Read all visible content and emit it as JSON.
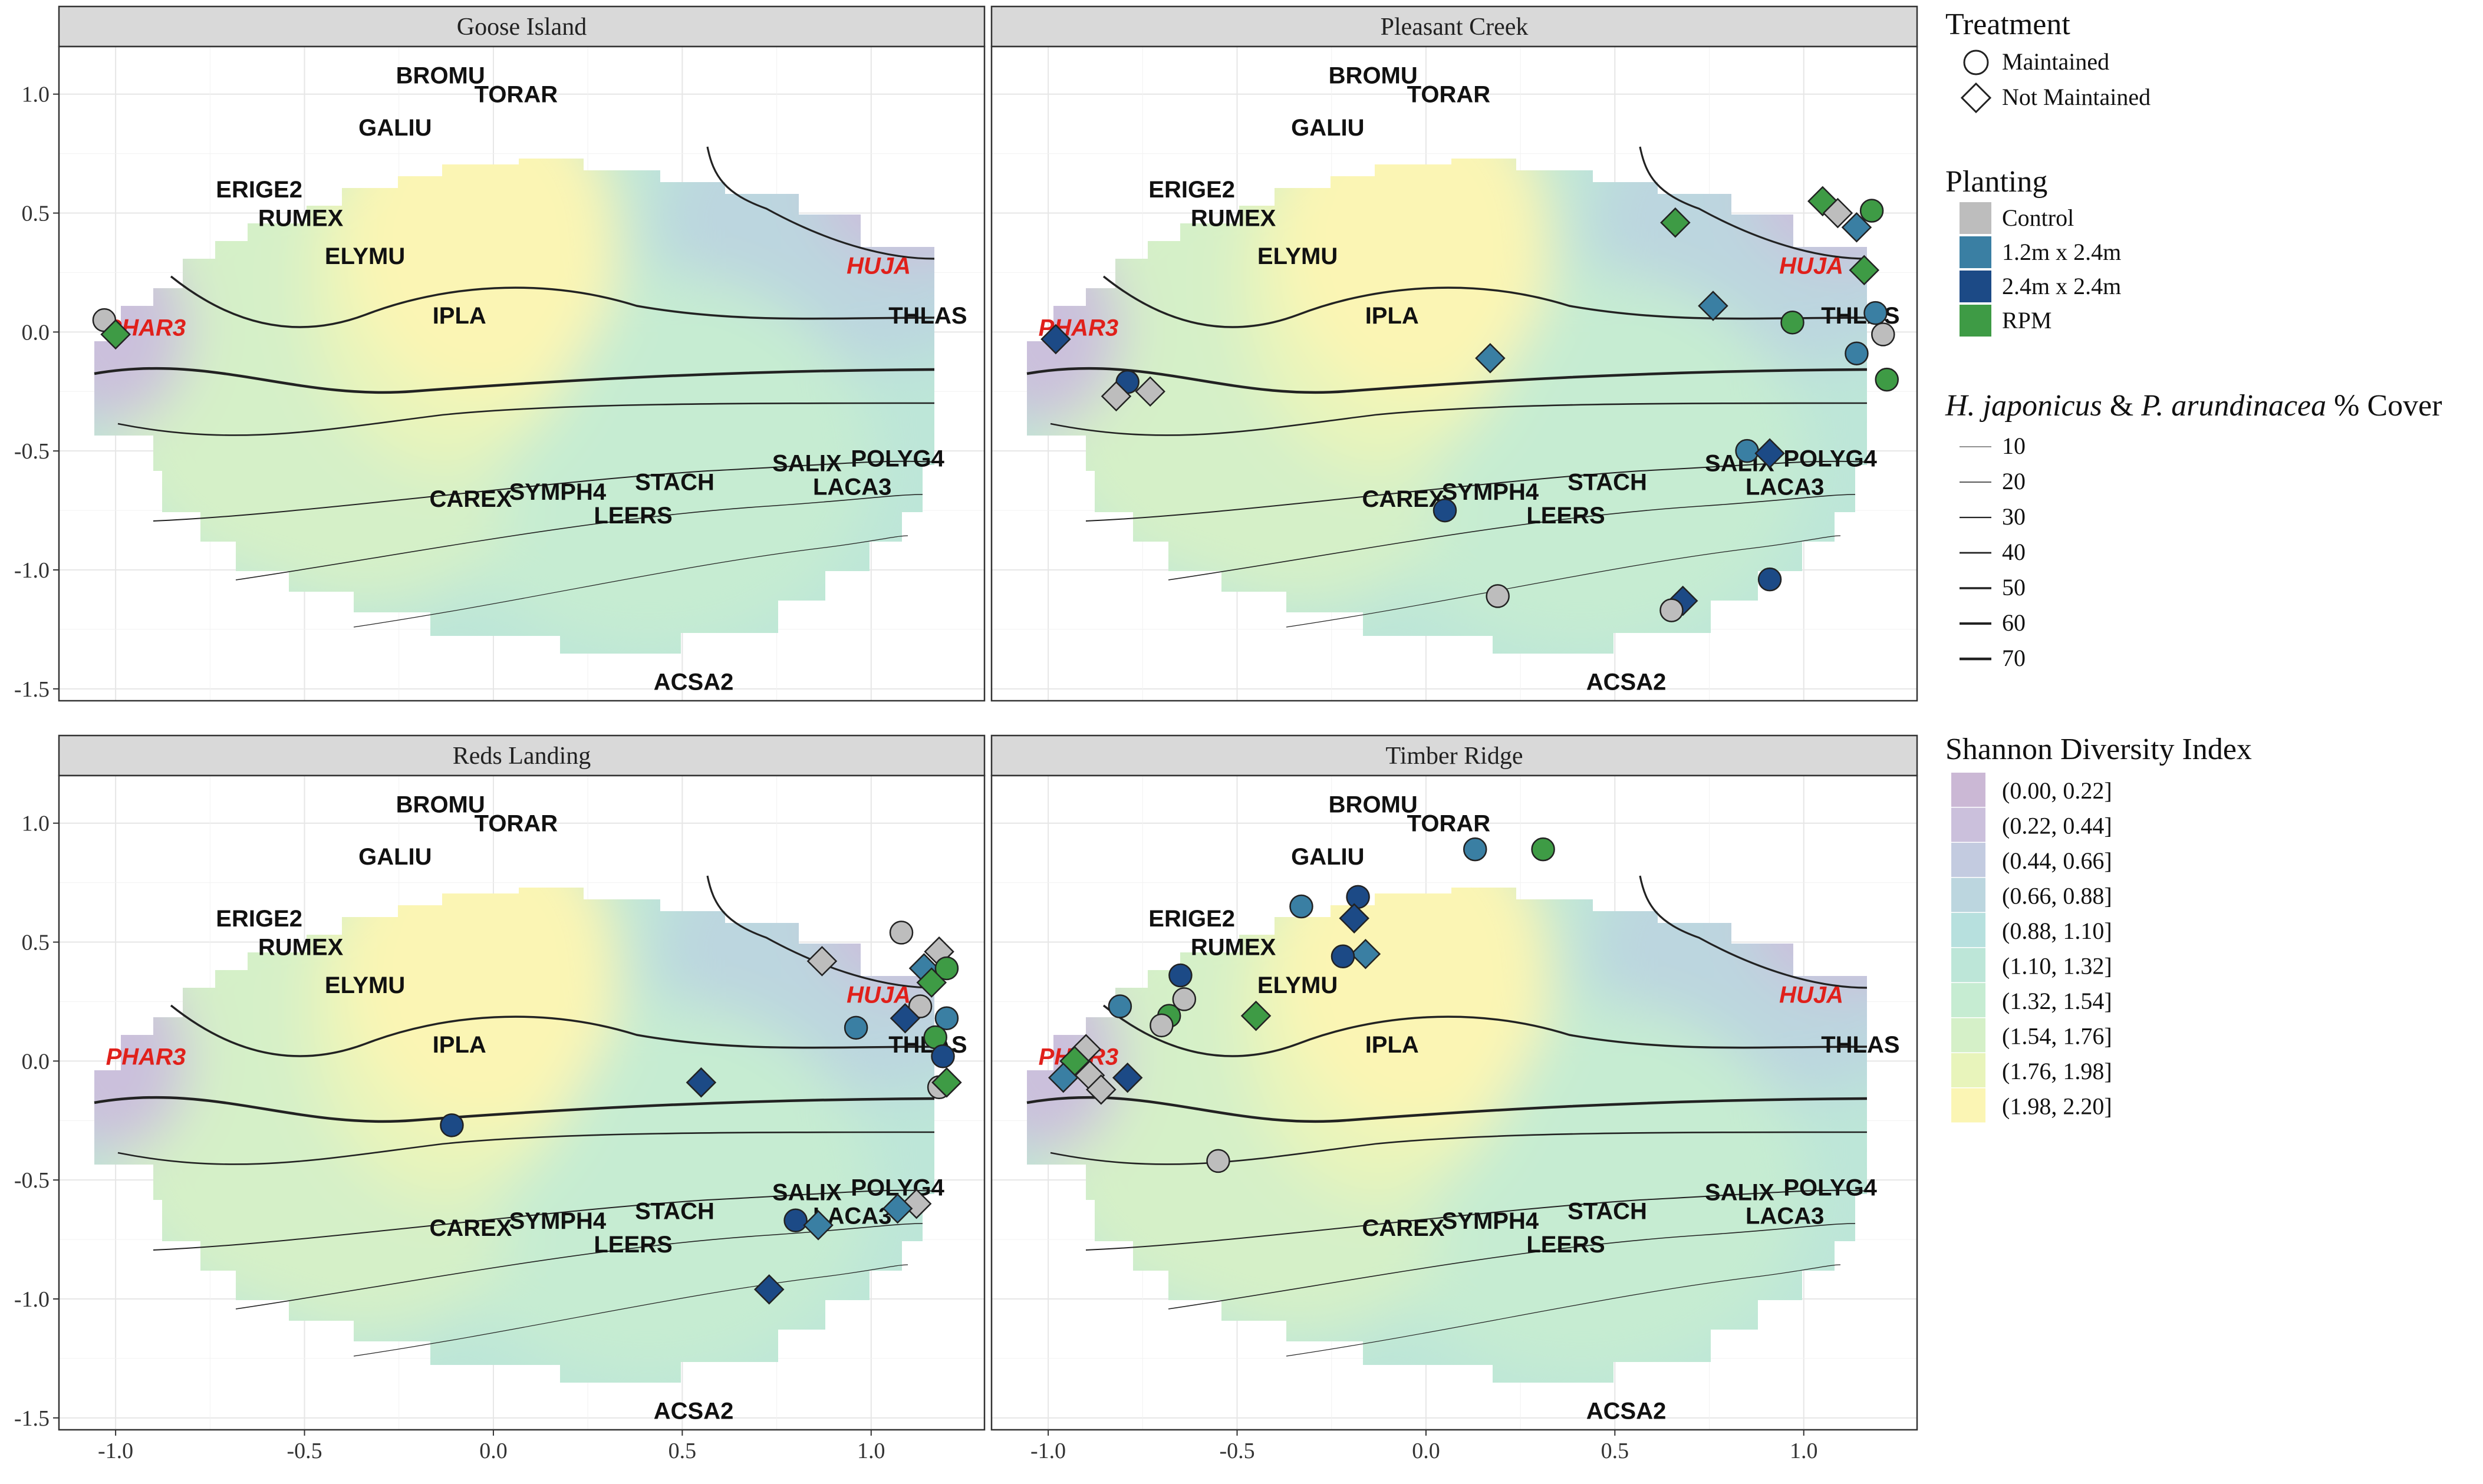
{
  "chart_data": {
    "type": "scatter",
    "xlim": [
      -1.15,
      1.3
    ],
    "ylim": [
      -1.55,
      1.2
    ],
    "x_ticks": [
      -1.0,
      -0.5,
      0.0,
      0.5,
      1.0
    ],
    "x_tick_labels": [
      "-1.0",
      "-0.5",
      "0.0",
      "0.5",
      "1.0"
    ],
    "y_ticks": [
      1.0,
      0.5,
      0.0,
      -0.5,
      -1.0,
      -1.5
    ],
    "y_tick_labels": [
      "1.0",
      "0.5",
      "0.0",
      "-0.5",
      "-1.0",
      "-1.5"
    ],
    "grid": true,
    "legend_position": "right",
    "panels": [
      "Goose Island",
      "Pleasant Creek",
      "Reds Landing",
      "Timber Ridge"
    ],
    "species": [
      {
        "label": "BROMU",
        "x": -0.14,
        "y": 1.08
      },
      {
        "label": "TORAR",
        "x": 0.06,
        "y": 1.0
      },
      {
        "label": "GALIU",
        "x": -0.26,
        "y": 0.86
      },
      {
        "label": "ERIGE2",
        "x": -0.62,
        "y": 0.6
      },
      {
        "label": "RUMEX",
        "x": -0.51,
        "y": 0.48
      },
      {
        "label": "ELYMU",
        "x": -0.34,
        "y": 0.32
      },
      {
        "label": "IPLA",
        "x": -0.09,
        "y": 0.07
      },
      {
        "label": "THLAS",
        "x": 1.15,
        "y": 0.07
      },
      {
        "label": "SALIX",
        "x": 0.83,
        "y": -0.55
      },
      {
        "label": "POLYG4",
        "x": 1.07,
        "y": -0.53
      },
      {
        "label": "LACA3",
        "x": 0.95,
        "y": -0.65
      },
      {
        "label": "STACH",
        "x": 0.48,
        "y": -0.63
      },
      {
        "label": "SYMPH4",
        "x": 0.17,
        "y": -0.67
      },
      {
        "label": "CAREX",
        "x": -0.06,
        "y": -0.7
      },
      {
        "label": "LEERS",
        "x": 0.37,
        "y": -0.77
      },
      {
        "label": "ACSA2",
        "x": 0.53,
        "y": -1.47
      }
    ],
    "highlight_species": [
      {
        "label": "HUJA",
        "x": 1.02,
        "y": 0.28
      },
      {
        "label": "PHAR3",
        "x": -0.92,
        "y": 0.02
      }
    ],
    "legend": {
      "treatment_title": "Treatment",
      "treatment": [
        {
          "label": "Maintained",
          "shape": "circle"
        },
        {
          "label": "Not Maintained",
          "shape": "diamond"
        }
      ],
      "planting_title": "Planting",
      "planting": [
        {
          "label": "Control",
          "color": "#bdbdbd"
        },
        {
          "label": "1.2m x 2.4m",
          "color": "#3a7fa3"
        },
        {
          "label": "2.4m x 2.4m",
          "color": "#1c4a86"
        },
        {
          "label": "RPM",
          "color": "#3e9b45"
        }
      ],
      "cover_title_italic_1": "H. japonicus",
      "cover_title_amp": " & ",
      "cover_title_italic_2": "P. arundinacea",
      "cover_title_rest": " % Cover",
      "cover_levels": [
        "10",
        "20",
        "30",
        "40",
        "50",
        "60",
        "70"
      ],
      "diversity_title": "Shannon Diversity Index",
      "diversity_bins": [
        {
          "label": "(0.00, 0.22]",
          "color": "#cbb8d5"
        },
        {
          "label": "(0.22, 0.44]",
          "color": "#cbc0dc"
        },
        {
          "label": "(0.44, 0.66]",
          "color": "#c3cbe0"
        },
        {
          "label": "(0.66, 0.88]",
          "color": "#bcd6df"
        },
        {
          "label": "(0.88, 1.10]",
          "color": "#b7e0de"
        },
        {
          "label": "(1.10, 1.32]",
          "color": "#bde6d8"
        },
        {
          "label": "(1.32, 1.54]",
          "color": "#c6ecd2"
        },
        {
          "label": "(1.54, 1.76]",
          "color": "#d5f0c8"
        },
        {
          "label": "(1.76, 1.98]",
          "color": "#e8f4bb"
        },
        {
          "label": "(1.98, 2.20]",
          "color": "#fbf5b4"
        }
      ]
    },
    "points": {
      "Goose Island": [
        {
          "x": -1.03,
          "y": 0.05,
          "treatment": "Maintained",
          "planting": "Control"
        },
        {
          "x": -1.0,
          "y": -0.01,
          "treatment": "Not Maintained",
          "planting": "RPM"
        }
      ],
      "Pleasant Creek": [
        {
          "x": 1.05,
          "y": 0.55,
          "treatment": "Not Maintained",
          "planting": "RPM"
        },
        {
          "x": 1.09,
          "y": 0.5,
          "treatment": "Not Maintained",
          "planting": "Control"
        },
        {
          "x": 1.18,
          "y": 0.51,
          "treatment": "Maintained",
          "planting": "RPM"
        },
        {
          "x": 1.14,
          "y": 0.44,
          "treatment": "Not Maintained",
          "planting": "1.2m x 2.4m"
        },
        {
          "x": 0.66,
          "y": 0.46,
          "treatment": "Not Maintained",
          "planting": "RPM"
        },
        {
          "x": 1.16,
          "y": 0.26,
          "treatment": "Not Maintained",
          "planting": "RPM"
        },
        {
          "x": 0.76,
          "y": 0.11,
          "treatment": "Not Maintained",
          "planting": "1.2m x 2.4m"
        },
        {
          "x": 0.97,
          "y": 0.04,
          "treatment": "Maintained",
          "planting": "RPM"
        },
        {
          "x": 1.19,
          "y": 0.08,
          "treatment": "Maintained",
          "planting": "1.2m x 2.4m"
        },
        {
          "x": 1.21,
          "y": -0.01,
          "treatment": "Maintained",
          "planting": "Control"
        },
        {
          "x": 1.14,
          "y": -0.09,
          "treatment": "Maintained",
          "planting": "1.2m x 2.4m"
        },
        {
          "x": 1.22,
          "y": -0.2,
          "treatment": "Maintained",
          "planting": "RPM"
        },
        {
          "x": 0.17,
          "y": -0.11,
          "treatment": "Not Maintained",
          "planting": "1.2m x 2.4m"
        },
        {
          "x": -0.98,
          "y": -0.03,
          "treatment": "Not Maintained",
          "planting": "2.4m x 2.4m"
        },
        {
          "x": -0.79,
          "y": -0.21,
          "treatment": "Maintained",
          "planting": "2.4m x 2.4m"
        },
        {
          "x": -0.82,
          "y": -0.27,
          "treatment": "Not Maintained",
          "planting": "Control"
        },
        {
          "x": -0.73,
          "y": -0.25,
          "treatment": "Not Maintained",
          "planting": "Control"
        },
        {
          "x": 0.85,
          "y": -0.5,
          "treatment": "Maintained",
          "planting": "1.2m x 2.4m"
        },
        {
          "x": 0.91,
          "y": -0.51,
          "treatment": "Not Maintained",
          "planting": "2.4m x 2.4m"
        },
        {
          "x": 0.05,
          "y": -0.75,
          "treatment": "Maintained",
          "planting": "2.4m x 2.4m"
        },
        {
          "x": 0.91,
          "y": -1.04,
          "treatment": "Maintained",
          "planting": "2.4m x 2.4m"
        },
        {
          "x": 0.68,
          "y": -1.13,
          "treatment": "Not Maintained",
          "planting": "2.4m x 2.4m"
        },
        {
          "x": 0.65,
          "y": -1.17,
          "treatment": "Maintained",
          "planting": "Control"
        },
        {
          "x": 0.19,
          "y": -1.11,
          "treatment": "Maintained",
          "planting": "Control"
        }
      ],
      "Reds Landing": [
        {
          "x": 1.08,
          "y": 0.54,
          "treatment": "Maintained",
          "planting": "Control"
        },
        {
          "x": 0.87,
          "y": 0.42,
          "treatment": "Not Maintained",
          "planting": "Control"
        },
        {
          "x": 1.18,
          "y": 0.46,
          "treatment": "Not Maintained",
          "planting": "Control"
        },
        {
          "x": 1.14,
          "y": 0.39,
          "treatment": "Not Maintained",
          "planting": "1.2m x 2.4m"
        },
        {
          "x": 1.2,
          "y": 0.39,
          "treatment": "Maintained",
          "planting": "RPM"
        },
        {
          "x": 1.16,
          "y": 0.33,
          "treatment": "Not Maintained",
          "planting": "RPM"
        },
        {
          "x": 1.13,
          "y": 0.23,
          "treatment": "Maintained",
          "planting": "Control"
        },
        {
          "x": 1.09,
          "y": 0.18,
          "treatment": "Not Maintained",
          "planting": "2.4m x 2.4m"
        },
        {
          "x": 1.2,
          "y": 0.18,
          "treatment": "Maintained",
          "planting": "1.2m x 2.4m"
        },
        {
          "x": 0.96,
          "y": 0.14,
          "treatment": "Maintained",
          "planting": "1.2m x 2.4m"
        },
        {
          "x": 1.17,
          "y": 0.1,
          "treatment": "Maintained",
          "planting": "RPM"
        },
        {
          "x": 1.19,
          "y": 0.02,
          "treatment": "Maintained",
          "planting": "2.4m x 2.4m"
        },
        {
          "x": 1.18,
          "y": -0.11,
          "treatment": "Maintained",
          "planting": "Control"
        },
        {
          "x": 1.2,
          "y": -0.09,
          "treatment": "Not Maintained",
          "planting": "RPM"
        },
        {
          "x": 0.55,
          "y": -0.09,
          "treatment": "Not Maintained",
          "planting": "2.4m x 2.4m"
        },
        {
          "x": -0.11,
          "y": -0.27,
          "treatment": "Maintained",
          "planting": "2.4m x 2.4m"
        },
        {
          "x": 1.12,
          "y": -0.6,
          "treatment": "Not Maintained",
          "planting": "Control"
        },
        {
          "x": 1.07,
          "y": -0.62,
          "treatment": "Not Maintained",
          "planting": "1.2m x 2.4m"
        },
        {
          "x": 0.8,
          "y": -0.67,
          "treatment": "Maintained",
          "planting": "2.4m x 2.4m"
        },
        {
          "x": 0.86,
          "y": -0.69,
          "treatment": "Not Maintained",
          "planting": "1.2m x 2.4m"
        },
        {
          "x": 0.73,
          "y": -0.96,
          "treatment": "Not Maintained",
          "planting": "2.4m x 2.4m"
        }
      ],
      "Timber Ridge": [
        {
          "x": 0.13,
          "y": 0.89,
          "treatment": "Maintained",
          "planting": "1.2m x 2.4m"
        },
        {
          "x": 0.31,
          "y": 0.89,
          "treatment": "Maintained",
          "planting": "RPM"
        },
        {
          "x": -0.18,
          "y": 0.69,
          "treatment": "Maintained",
          "planting": "2.4m x 2.4m"
        },
        {
          "x": -0.33,
          "y": 0.65,
          "treatment": "Maintained",
          "planting": "1.2m x 2.4m"
        },
        {
          "x": -0.19,
          "y": 0.6,
          "treatment": "Not Maintained",
          "planting": "2.4m x 2.4m"
        },
        {
          "x": -0.16,
          "y": 0.45,
          "treatment": "Not Maintained",
          "planting": "1.2m x 2.4m"
        },
        {
          "x": -0.22,
          "y": 0.44,
          "treatment": "Maintained",
          "planting": "2.4m x 2.4m"
        },
        {
          "x": -0.65,
          "y": 0.36,
          "treatment": "Maintained",
          "planting": "2.4m x 2.4m"
        },
        {
          "x": -0.64,
          "y": 0.26,
          "treatment": "Maintained",
          "planting": "Control"
        },
        {
          "x": -0.81,
          "y": 0.23,
          "treatment": "Maintained",
          "planting": "1.2m x 2.4m"
        },
        {
          "x": -0.68,
          "y": 0.19,
          "treatment": "Maintained",
          "planting": "RPM"
        },
        {
          "x": -0.7,
          "y": 0.15,
          "treatment": "Maintained",
          "planting": "Control"
        },
        {
          "x": -0.45,
          "y": 0.19,
          "treatment": "Not Maintained",
          "planting": "RPM"
        },
        {
          "x": -0.9,
          "y": 0.05,
          "treatment": "Not Maintained",
          "planting": "Control"
        },
        {
          "x": -0.93,
          "y": 0.0,
          "treatment": "Not Maintained",
          "planting": "RPM"
        },
        {
          "x": -0.96,
          "y": -0.07,
          "treatment": "Not Maintained",
          "planting": "1.2m x 2.4m"
        },
        {
          "x": -0.89,
          "y": -0.06,
          "treatment": "Not Maintained",
          "planting": "Control"
        },
        {
          "x": -0.86,
          "y": -0.12,
          "treatment": "Not Maintained",
          "planting": "Control"
        },
        {
          "x": -0.79,
          "y": -0.07,
          "treatment": "Not Maintained",
          "planting": "2.4m x 2.4m"
        },
        {
          "x": -0.55,
          "y": -0.42,
          "treatment": "Maintained",
          "planting": "Control"
        }
      ]
    }
  }
}
